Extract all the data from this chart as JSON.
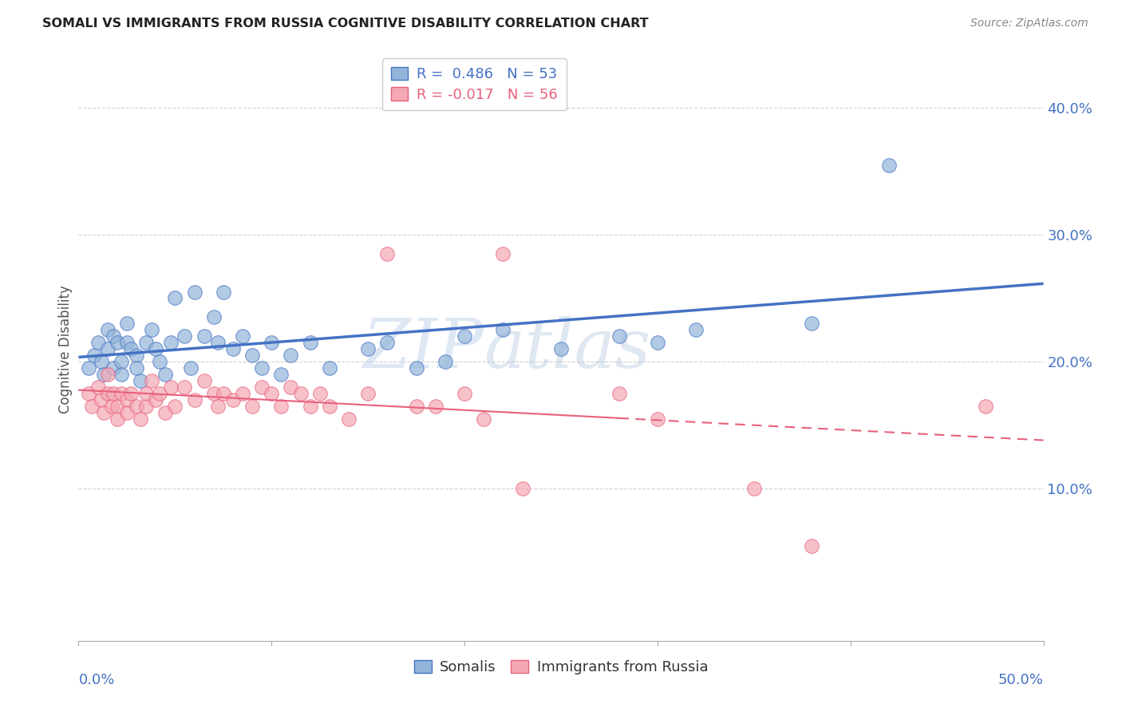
{
  "title": "SOMALI VS IMMIGRANTS FROM RUSSIA COGNITIVE DISABILITY CORRELATION CHART",
  "source": "Source: ZipAtlas.com",
  "ylabel": "Cognitive Disability",
  "ytick_labels": [
    "10.0%",
    "20.0%",
    "30.0%",
    "40.0%"
  ],
  "ytick_values": [
    0.1,
    0.2,
    0.3,
    0.4
  ],
  "xlim": [
    0.0,
    0.5
  ],
  "ylim": [
    -0.02,
    0.44
  ],
  "legend_r_somali": "R =  0.486",
  "legend_n_somali": "N = 53",
  "legend_r_russia": "R = -0.017",
  "legend_n_russia": "N = 56",
  "somali_color": "#92B4D8",
  "russia_color": "#F4A7B4",
  "trend_somali_color": "#4472C4",
  "trend_russia_color": "#E8607A",
  "background_color": "#FFFFFF",
  "grid_color": "#CCCCCC",
  "somali_x": [
    0.005,
    0.008,
    0.01,
    0.012,
    0.013,
    0.015,
    0.015,
    0.018,
    0.018,
    0.02,
    0.022,
    0.022,
    0.025,
    0.025,
    0.027,
    0.03,
    0.03,
    0.032,
    0.035,
    0.038,
    0.04,
    0.042,
    0.045,
    0.048,
    0.05,
    0.055,
    0.058,
    0.06,
    0.065,
    0.07,
    0.072,
    0.075,
    0.08,
    0.085,
    0.09,
    0.095,
    0.1,
    0.105,
    0.11,
    0.12,
    0.13,
    0.15,
    0.16,
    0.175,
    0.19,
    0.2,
    0.22,
    0.25,
    0.28,
    0.3,
    0.32,
    0.38,
    0.42
  ],
  "somali_y": [
    0.195,
    0.205,
    0.215,
    0.2,
    0.19,
    0.21,
    0.225,
    0.195,
    0.22,
    0.215,
    0.2,
    0.19,
    0.215,
    0.23,
    0.21,
    0.205,
    0.195,
    0.185,
    0.215,
    0.225,
    0.21,
    0.2,
    0.19,
    0.215,
    0.25,
    0.22,
    0.195,
    0.255,
    0.22,
    0.235,
    0.215,
    0.255,
    0.21,
    0.22,
    0.205,
    0.195,
    0.215,
    0.19,
    0.205,
    0.215,
    0.195,
    0.21,
    0.215,
    0.195,
    0.2,
    0.22,
    0.225,
    0.21,
    0.22,
    0.215,
    0.225,
    0.23,
    0.355
  ],
  "russia_x": [
    0.005,
    0.007,
    0.01,
    0.012,
    0.013,
    0.015,
    0.015,
    0.017,
    0.018,
    0.02,
    0.02,
    0.022,
    0.025,
    0.025,
    0.027,
    0.03,
    0.032,
    0.035,
    0.035,
    0.038,
    0.04,
    0.042,
    0.045,
    0.048,
    0.05,
    0.055,
    0.06,
    0.065,
    0.07,
    0.072,
    0.075,
    0.08,
    0.085,
    0.09,
    0.095,
    0.1,
    0.105,
    0.11,
    0.115,
    0.12,
    0.125,
    0.13,
    0.14,
    0.15,
    0.16,
    0.175,
    0.185,
    0.2,
    0.21,
    0.22,
    0.23,
    0.28,
    0.3,
    0.35,
    0.38,
    0.47
  ],
  "russia_y": [
    0.175,
    0.165,
    0.18,
    0.17,
    0.16,
    0.19,
    0.175,
    0.165,
    0.175,
    0.165,
    0.155,
    0.175,
    0.17,
    0.16,
    0.175,
    0.165,
    0.155,
    0.165,
    0.175,
    0.185,
    0.17,
    0.175,
    0.16,
    0.18,
    0.165,
    0.18,
    0.17,
    0.185,
    0.175,
    0.165,
    0.175,
    0.17,
    0.175,
    0.165,
    0.18,
    0.175,
    0.165,
    0.18,
    0.175,
    0.165,
    0.175,
    0.165,
    0.155,
    0.175,
    0.285,
    0.165,
    0.165,
    0.175,
    0.155,
    0.285,
    0.1,
    0.175,
    0.155,
    0.1,
    0.055,
    0.165
  ]
}
